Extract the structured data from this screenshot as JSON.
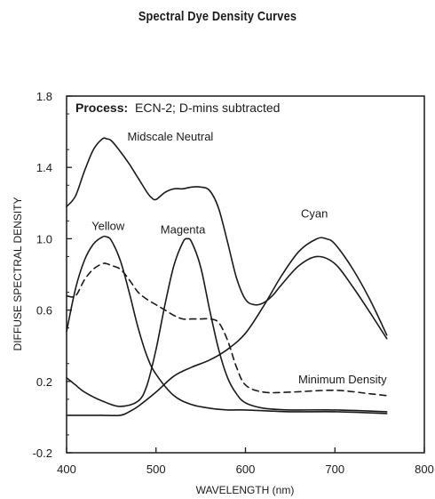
{
  "chart_data": {
    "type": "line",
    "title": "Spectral Dye Density Curves",
    "annotation": {
      "bold": "Process:",
      "text": "ECN-2; D-mins subtracted"
    },
    "xlabel": "WAVELENGTH (nm)",
    "ylabel": "DIFFUSE SPECTRAL DENSITY",
    "xlim": [
      400,
      800
    ],
    "ylim": [
      -0.2,
      1.8
    ],
    "xticks": [
      400,
      500,
      600,
      700,
      800
    ],
    "xtick_labels": [
      "400",
      "500",
      "600",
      "700",
      "800"
    ],
    "yticks": [
      -0.2,
      0.2,
      0.6,
      1.0,
      1.4,
      1.8
    ],
    "ytick_labels": [
      "-0.2",
      "0.2",
      "0.6",
      "1.0",
      "1.4",
      "1.8"
    ],
    "grid": false,
    "series": [
      {
        "name": "Midscale Neutral",
        "style": "solid",
        "label_pos": [
          468,
          1.55
        ],
        "x": [
          400,
          410,
          420,
          430,
          440,
          445,
          450,
          460,
          470,
          480,
          490,
          495,
          500,
          510,
          520,
          530,
          540,
          550,
          560,
          570,
          580,
          590,
          600,
          610,
          620,
          630,
          640,
          660,
          680,
          700,
          720,
          740,
          758
        ],
        "y": [
          1.18,
          1.24,
          1.38,
          1.5,
          1.56,
          1.56,
          1.55,
          1.49,
          1.42,
          1.34,
          1.26,
          1.23,
          1.22,
          1.26,
          1.28,
          1.28,
          1.29,
          1.29,
          1.27,
          1.17,
          0.98,
          0.78,
          0.66,
          0.63,
          0.64,
          0.68,
          0.74,
          0.85,
          0.9,
          0.86,
          0.73,
          0.58,
          0.44
        ]
      },
      {
        "name": "Yellow",
        "style": "solid",
        "label_pos": [
          428,
          1.05
        ],
        "x": [
          400,
          410,
          420,
          430,
          440,
          445,
          450,
          460,
          470,
          480,
          490,
          500,
          520,
          540,
          560,
          580,
          600,
          650,
          700,
          758
        ],
        "y": [
          0.48,
          0.72,
          0.88,
          0.97,
          1.01,
          1.01,
          0.99,
          0.88,
          0.7,
          0.5,
          0.34,
          0.24,
          0.12,
          0.07,
          0.05,
          0.04,
          0.04,
          0.03,
          0.03,
          0.02
        ]
      },
      {
        "name": "Magenta",
        "style": "solid",
        "label_pos": [
          505,
          1.03
        ],
        "x": [
          400,
          410,
          420,
          440,
          460,
          480,
          490,
          500,
          510,
          520,
          530,
          535,
          540,
          550,
          560,
          570,
          580,
          590,
          600,
          620,
          650,
          700,
          758
        ],
        "y": [
          0.22,
          0.18,
          0.14,
          0.09,
          0.06,
          0.09,
          0.18,
          0.38,
          0.63,
          0.85,
          0.98,
          1.0,
          0.98,
          0.84,
          0.6,
          0.38,
          0.22,
          0.13,
          0.08,
          0.05,
          0.04,
          0.04,
          0.03
        ]
      },
      {
        "name": "Cyan",
        "style": "solid",
        "label_pos": [
          662,
          1.12
        ],
        "x": [
          400,
          420,
          440,
          460,
          470,
          480,
          500,
          520,
          540,
          560,
          580,
          600,
          620,
          640,
          660,
          680,
          690,
          700,
          720,
          740,
          758
        ],
        "y": [
          0.01,
          0.01,
          0.01,
          0.01,
          0.03,
          0.06,
          0.14,
          0.23,
          0.28,
          0.32,
          0.38,
          0.47,
          0.62,
          0.79,
          0.93,
          1.0,
          1.0,
          0.97,
          0.83,
          0.65,
          0.46
        ]
      },
      {
        "name": "Minimum Density",
        "style": "dashed",
        "label_pos": [
          659,
          0.19
        ],
        "x": [
          400,
          410,
          420,
          430,
          440,
          445,
          450,
          460,
          470,
          480,
          490,
          500,
          510,
          520,
          530,
          540,
          550,
          560,
          570,
          580,
          590,
          600,
          620,
          650,
          700,
          740,
          758
        ],
        "y": [
          0.68,
          0.68,
          0.77,
          0.83,
          0.86,
          0.86,
          0.85,
          0.83,
          0.77,
          0.7,
          0.66,
          0.63,
          0.6,
          0.57,
          0.55,
          0.55,
          0.55,
          0.55,
          0.53,
          0.43,
          0.28,
          0.18,
          0.14,
          0.14,
          0.15,
          0.13,
          0.12
        ]
      }
    ]
  }
}
